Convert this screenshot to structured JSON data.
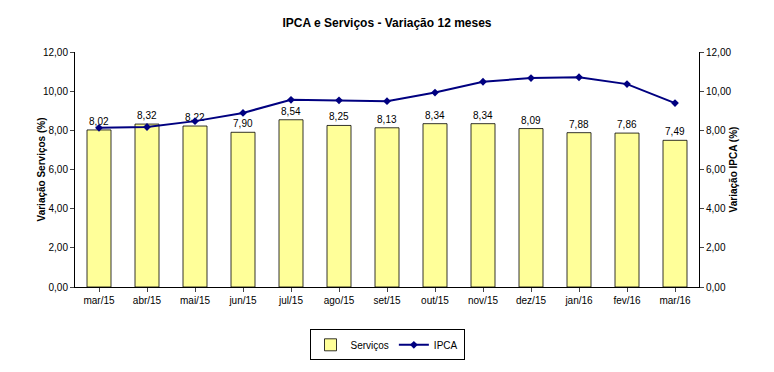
{
  "chart_data": {
    "type": "bar",
    "title": "IPCA e Serviços - Variação 12 meses",
    "y_label": "Variação Serviços (%)",
    "y2_label": "Variação IPCA (%)",
    "categories": [
      "mar/15",
      "abr/15",
      "mai/15",
      "jun/15",
      "jul/15",
      "ago/15",
      "set/15",
      "out/15",
      "nov/15",
      "dez/15",
      "jan/16",
      "fev/16",
      "mar/16"
    ],
    "series": [
      {
        "name": "Serviços",
        "type": "bar",
        "color": "#ffff99",
        "axis": "y",
        "values": [
          8.02,
          8.32,
          8.22,
          7.9,
          8.54,
          8.25,
          8.13,
          8.34,
          8.34,
          8.09,
          7.88,
          7.86,
          7.49
        ],
        "value_labels": [
          "8,02",
          "8,32",
          "8,22",
          "7,90",
          "8,54",
          "8,25",
          "8,13",
          "8,34",
          "8,34",
          "8,09",
          "7,88",
          "7,86",
          "7,49"
        ]
      },
      {
        "name": "IPCA",
        "type": "line",
        "color": "#000080",
        "marker": "diamond",
        "axis": "y2",
        "values": [
          8.13,
          8.17,
          8.47,
          8.89,
          9.56,
          9.53,
          9.49,
          9.93,
          10.48,
          10.67,
          10.71,
          10.36,
          9.39
        ]
      }
    ],
    "ylim": [
      0,
      12
    ],
    "yticks": [
      {
        "value": 0,
        "label": "0,00"
      },
      {
        "value": 2,
        "label": "2,00"
      },
      {
        "value": 4,
        "label": "4,00"
      },
      {
        "value": 6,
        "label": "6,00"
      },
      {
        "value": 8,
        "label": "8,00"
      },
      {
        "value": 10,
        "label": "10,00"
      },
      {
        "value": 12,
        "label": "12,00"
      }
    ],
    "y2lim": [
      0,
      12
    ],
    "y2ticks": [
      {
        "value": 0,
        "label": "0,00"
      },
      {
        "value": 2,
        "label": "2,00"
      },
      {
        "value": 4,
        "label": "4,00"
      },
      {
        "value": 6,
        "label": "6,00"
      },
      {
        "value": 8,
        "label": "8,00"
      },
      {
        "value": 10,
        "label": "10,00"
      },
      {
        "value": 12,
        "label": "12,00"
      }
    ],
    "data_labels": true,
    "grid": false,
    "legend": "bottom"
  }
}
